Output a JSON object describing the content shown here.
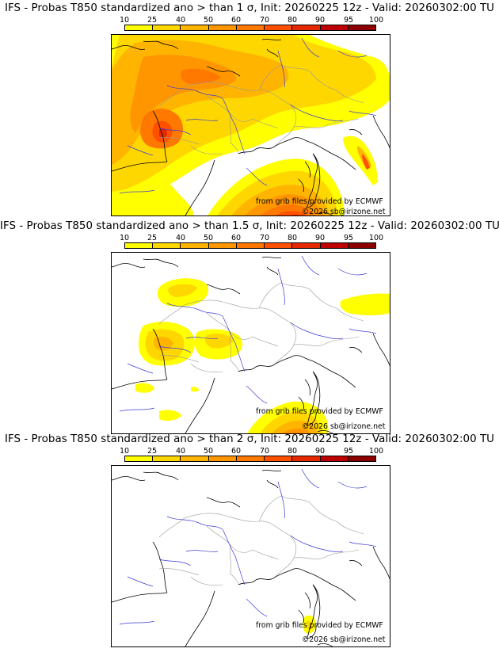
{
  "colorbar": {
    "ticks": [
      "10",
      "25",
      "40",
      "50",
      "60",
      "70",
      "80",
      "90",
      "95",
      "100"
    ],
    "colors": [
      "#ffff00",
      "#ffd700",
      "#ffb400",
      "#ff9600",
      "#ff7800",
      "#ff5000",
      "#e62800",
      "#be0000",
      "#8c0000"
    ]
  },
  "panels": [
    {
      "title": "IFS - Probas T850  standardized ano > than 1 σ, Init: 20260225 12z - Valid: 20260302:00 TU",
      "credit_source": "from grib files provided by ECMWF",
      "credit_copyright": "©2026 sb@irizone.net"
    },
    {
      "title": "IFS - Probas T850  standardized ano > than 1.5 σ, Init: 20260225 12z - Valid: 20260302:00 TU",
      "credit_source": "from grib files provided by ECMWF",
      "credit_copyright": "©2026 sb@irizone.net"
    },
    {
      "title": "IFS - Probas T850  standardized ano > than 2 σ, Init: 20260225 12z - Valid: 20260302:00 TU",
      "credit_source": "from grib files provided by ECMWF",
      "credit_copyright": "©2026 sb@irizone.net"
    }
  ]
}
